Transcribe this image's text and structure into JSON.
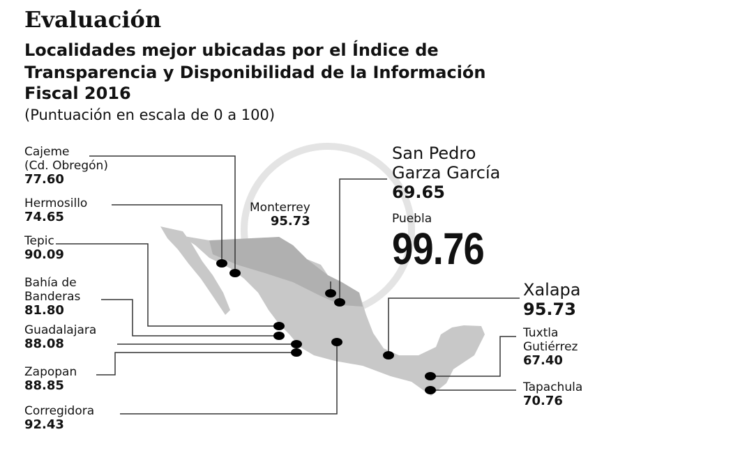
{
  "title": "Evaluación",
  "subtitle_lines": [
    "Localidades mejor ubicadas por el Índice de",
    "Transparencia y Disponibilidad de la Información",
    "Fiscal 2016"
  ],
  "note": "(Puntuación en escala de 0 a 100)",
  "colors": {
    "map": "#c8c8c8",
    "map_dark": "#b0b0b0",
    "lines": "#333333",
    "dots": "#000000"
  },
  "localities": {
    "cajeme": {
      "name": [
        "Cajeme",
        "(Cd. Obregón)"
      ],
      "score": "77.60"
    },
    "hermosillo": {
      "name": "Hermosillo",
      "score": "74.65"
    },
    "tepic": {
      "name": "Tepic",
      "score": "90.09"
    },
    "bahia": {
      "name": [
        "Bahía de",
        "Banderas"
      ],
      "score": "81.80"
    },
    "guadalajara": {
      "name": "Guadalajara",
      "score": "88.08"
    },
    "zapopan": {
      "name": "Zapopan",
      "score": "88.85"
    },
    "corregidora": {
      "name": "Corregidora",
      "score": "92.43"
    },
    "monterrey": {
      "name": "Monterrey",
      "score": "95.73"
    },
    "spgg": {
      "name": [
        "San Pedro",
        "Garza García"
      ],
      "score": "69.65"
    },
    "puebla": {
      "name": "Puebla",
      "score": "99.76"
    },
    "xalapa": {
      "name": "Xalapa",
      "score": "95.73"
    },
    "tuxtla": {
      "name": [
        "Tuxtla",
        "Gutiérrez"
      ],
      "score": "67.40"
    },
    "tapachula": {
      "name": "Tapachula",
      "score": "70.76"
    }
  }
}
